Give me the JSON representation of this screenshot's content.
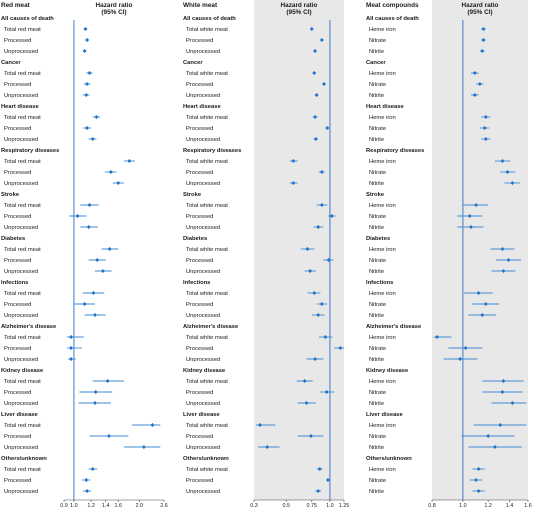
{
  "chart_data": [
    {
      "type": "forest",
      "section_label": "Red meat",
      "axis_title": "Hazard ratio (95% CI)",
      "scale": "log",
      "xlim": [
        0.9,
        2.6
      ],
      "ticks": [
        0.9,
        1.0,
        1.2,
        1.4,
        1.6,
        2.0,
        2.6
      ],
      "tick_labels": [
        "0.9",
        "1.0",
        "1.2",
        "1.4",
        "1.6",
        "2.0",
        "2.6"
      ],
      "reference_line": 1.0,
      "shaded_panel": false,
      "groups": [
        {
          "name": "All causes of death",
          "rows": [
            {
              "label": "Total red meat",
              "hr": 1.13,
              "lo": 1.11,
              "hi": 1.15
            },
            {
              "label": "Processed",
              "hr": 1.15,
              "lo": 1.13,
              "hi": 1.17
            },
            {
              "label": "Unprocessed",
              "hr": 1.12,
              "lo": 1.1,
              "hi": 1.14
            }
          ]
        },
        {
          "name": "Cancer",
          "rows": [
            {
              "label": "Total red meat",
              "hr": 1.18,
              "lo": 1.14,
              "hi": 1.22
            },
            {
              "label": "Processed",
              "hr": 1.15,
              "lo": 1.11,
              "hi": 1.19
            },
            {
              "label": "Unprocessed",
              "hr": 1.14,
              "lo": 1.1,
              "hi": 1.18
            }
          ]
        },
        {
          "name": "Heart disease",
          "rows": [
            {
              "label": "Total red meat",
              "hr": 1.27,
              "lo": 1.22,
              "hi": 1.32
            },
            {
              "label": "Processed",
              "hr": 1.15,
              "lo": 1.1,
              "hi": 1.2
            },
            {
              "label": "Unprocessed",
              "hr": 1.22,
              "lo": 1.17,
              "hi": 1.27
            }
          ]
        },
        {
          "name": "Respiratory diseases",
          "rows": [
            {
              "label": "Total red meat",
              "hr": 1.8,
              "lo": 1.7,
              "hi": 1.91
            },
            {
              "label": "Processed",
              "hr": 1.48,
              "lo": 1.39,
              "hi": 1.57
            },
            {
              "label": "Unprocessed",
              "hr": 1.6,
              "lo": 1.51,
              "hi": 1.7
            }
          ]
        },
        {
          "name": "Stroke",
          "rows": [
            {
              "label": "Total red meat",
              "hr": 1.18,
              "lo": 1.07,
              "hi": 1.3
            },
            {
              "label": "Processed",
              "hr": 1.04,
              "lo": 0.95,
              "hi": 1.14
            },
            {
              "label": "Unprocessed",
              "hr": 1.17,
              "lo": 1.07,
              "hi": 1.29
            }
          ]
        },
        {
          "name": "Diabetes",
          "rows": [
            {
              "label": "Total red meat",
              "hr": 1.46,
              "lo": 1.34,
              "hi": 1.6
            },
            {
              "label": "Processed",
              "hr": 1.28,
              "lo": 1.17,
              "hi": 1.4
            },
            {
              "label": "Unprocessed",
              "hr": 1.36,
              "lo": 1.25,
              "hi": 1.49
            }
          ]
        },
        {
          "name": "Infections",
          "rows": [
            {
              "label": "Total red meat",
              "hr": 1.23,
              "lo": 1.1,
              "hi": 1.38
            },
            {
              "label": "Processed",
              "hr": 1.12,
              "lo": 1.0,
              "hi": 1.25
            },
            {
              "label": "Unprocessed",
              "hr": 1.25,
              "lo": 1.12,
              "hi": 1.4
            }
          ]
        },
        {
          "name": "Alzheimer's disease",
          "rows": [
            {
              "label": "Total red meat",
              "hr": 0.97,
              "lo": 0.93,
              "hi": 1.11
            },
            {
              "label": "Processed",
              "hr": 0.97,
              "lo": 0.93,
              "hi": 1.09
            },
            {
              "label": "Unprocessed",
              "hr": 0.97,
              "lo": 0.94,
              "hi": 1.02
            }
          ]
        },
        {
          "name": "Kidney disease",
          "rows": [
            {
              "label": "Total red meat",
              "hr": 1.43,
              "lo": 1.22,
              "hi": 1.7
            },
            {
              "label": "Processed",
              "hr": 1.26,
              "lo": 1.06,
              "hi": 1.5
            },
            {
              "label": "Unprocessed",
              "hr": 1.25,
              "lo": 1.05,
              "hi": 1.48
            }
          ]
        },
        {
          "name": "Liver disease",
          "rows": [
            {
              "label": "Total red meat",
              "hr": 2.3,
              "lo": 1.85,
              "hi": 2.5
            },
            {
              "label": "Processed",
              "hr": 1.45,
              "lo": 1.18,
              "hi": 1.78
            },
            {
              "label": "Unprocessed",
              "hr": 2.1,
              "lo": 1.7,
              "hi": 2.5
            }
          ]
        },
        {
          "name": "Others/unknown",
          "rows": [
            {
              "label": "Total red meat",
              "hr": 1.22,
              "lo": 1.17,
              "hi": 1.28
            },
            {
              "label": "Processed",
              "hr": 1.14,
              "lo": 1.09,
              "hi": 1.19
            },
            {
              "label": "Unprocessed",
              "hr": 1.15,
              "lo": 1.1,
              "hi": 1.2
            }
          ]
        }
      ]
    },
    {
      "type": "forest",
      "section_label": "White meat",
      "axis_title": "Hazard ratio (95% CI)",
      "scale": "log",
      "xlim": [
        0.3,
        1.25
      ],
      "ticks": [
        0.3,
        0.5,
        0.75,
        1.0,
        1.25
      ],
      "tick_labels": [
        "0.3",
        "0.5",
        "0.75",
        "1.0",
        "1.25"
      ],
      "reference_line": 1.0,
      "shaded_panel": true,
      "groups": [
        {
          "name": "All causes of death",
          "rows": [
            {
              "label": "Total white meat",
              "hr": 0.75,
              "lo": 0.73,
              "hi": 0.77
            },
            {
              "label": "Processed",
              "hr": 0.88,
              "lo": 0.86,
              "hi": 0.9
            },
            {
              "label": "Unprocessed",
              "hr": 0.79,
              "lo": 0.77,
              "hi": 0.81
            }
          ]
        },
        {
          "name": "Cancer",
          "rows": [
            {
              "label": "Total white meat",
              "hr": 0.78,
              "lo": 0.76,
              "hi": 0.8
            },
            {
              "label": "Processed",
              "hr": 0.91,
              "lo": 0.89,
              "hi": 0.93
            },
            {
              "label": "Unprocessed",
              "hr": 0.81,
              "lo": 0.79,
              "hi": 0.83
            }
          ]
        },
        {
          "name": "Heart disease",
          "rows": [
            {
              "label": "Total white meat",
              "hr": 0.79,
              "lo": 0.76,
              "hi": 0.82
            },
            {
              "label": "Processed",
              "hr": 0.96,
              "lo": 0.93,
              "hi": 0.99
            },
            {
              "label": "Unprocessed",
              "hr": 0.8,
              "lo": 0.77,
              "hi": 0.83
            }
          ]
        },
        {
          "name": "Respiratory diseases",
          "rows": [
            {
              "label": "Total white meat",
              "hr": 0.56,
              "lo": 0.53,
              "hi": 0.6
            },
            {
              "label": "Processed",
              "hr": 0.88,
              "lo": 0.84,
              "hi": 0.92
            },
            {
              "label": "Unprocessed",
              "hr": 0.56,
              "lo": 0.53,
              "hi": 0.6
            }
          ]
        },
        {
          "name": "Stroke",
          "rows": [
            {
              "label": "Total white meat",
              "hr": 0.88,
              "lo": 0.81,
              "hi": 0.96
            },
            {
              "label": "Processed",
              "hr": 1.03,
              "lo": 0.97,
              "hi": 1.09
            },
            {
              "label": "Unprocessed",
              "hr": 0.83,
              "lo": 0.77,
              "hi": 0.9
            }
          ]
        },
        {
          "name": "Diabetes",
          "rows": [
            {
              "label": "Total white meat",
              "hr": 0.7,
              "lo": 0.63,
              "hi": 0.78
            },
            {
              "label": "Processed",
              "hr": 0.98,
              "lo": 0.9,
              "hi": 1.06
            },
            {
              "label": "Unprocessed",
              "hr": 0.73,
              "lo": 0.67,
              "hi": 0.8
            }
          ]
        },
        {
          "name": "Infections",
          "rows": [
            {
              "label": "Total white meat",
              "hr": 0.78,
              "lo": 0.7,
              "hi": 0.86
            },
            {
              "label": "Processed",
              "hr": 0.88,
              "lo": 0.81,
              "hi": 0.96
            },
            {
              "label": "Unprocessed",
              "hr": 0.83,
              "lo": 0.75,
              "hi": 0.92
            }
          ]
        },
        {
          "name": "Alzheimer's disease",
          "rows": [
            {
              "label": "Total white meat",
              "hr": 0.93,
              "lo": 0.84,
              "hi": 1.04
            },
            {
              "label": "Processed",
              "hr": 1.18,
              "lo": 1.07,
              "hi": 1.25
            },
            {
              "label": "Unprocessed",
              "hr": 0.79,
              "lo": 0.69,
              "hi": 0.9
            }
          ]
        },
        {
          "name": "Kidney disease",
          "rows": [
            {
              "label": "Total white meat",
              "hr": 0.67,
              "lo": 0.59,
              "hi": 0.76
            },
            {
              "label": "Processed",
              "hr": 0.95,
              "lo": 0.85,
              "hi": 1.07
            },
            {
              "label": "Unprocessed",
              "hr": 0.69,
              "lo": 0.6,
              "hi": 0.8
            }
          ]
        },
        {
          "name": "Liver disease",
          "rows": [
            {
              "label": "Total white meat",
              "hr": 0.33,
              "lo": 0.31,
              "hi": 0.42
            },
            {
              "label": "Processed",
              "hr": 0.74,
              "lo": 0.6,
              "hi": 0.9
            },
            {
              "label": "Unprocessed",
              "hr": 0.37,
              "lo": 0.32,
              "hi": 0.45
            }
          ]
        },
        {
          "name": "Others/unknown",
          "rows": [
            {
              "label": "Total white meat",
              "hr": 0.85,
              "lo": 0.81,
              "hi": 0.89
            },
            {
              "label": "Processed",
              "hr": 0.97,
              "lo": 0.94,
              "hi": 1.0
            },
            {
              "label": "Unprocessed",
              "hr": 0.83,
              "lo": 0.79,
              "hi": 0.87
            }
          ]
        }
      ]
    },
    {
      "type": "forest",
      "section_label": "Meat compounds",
      "axis_title": "Hazard ratio (95% CI)",
      "scale": "log",
      "xlim": [
        0.8,
        1.6
      ],
      "ticks": [
        0.8,
        1.0,
        1.2,
        1.4,
        1.6
      ],
      "tick_labels": [
        "0.8",
        "1.0",
        "1.2",
        "1.4",
        "1.6"
      ],
      "reference_line": 1.0,
      "shaded_panel": true,
      "groups": [
        {
          "name": "All causes of death",
          "rows": [
            {
              "label": "Heme iron",
              "hr": 1.16,
              "lo": 1.14,
              "hi": 1.18
            },
            {
              "label": "Nitrate",
              "hr": 1.16,
              "lo": 1.14,
              "hi": 1.18
            },
            {
              "label": "Nitrite",
              "hr": 1.15,
              "lo": 1.13,
              "hi": 1.17
            }
          ]
        },
        {
          "name": "Cancer",
          "rows": [
            {
              "label": "Heme iron",
              "hr": 1.09,
              "lo": 1.06,
              "hi": 1.12
            },
            {
              "label": "Nitrate",
              "hr": 1.13,
              "lo": 1.1,
              "hi": 1.16
            },
            {
              "label": "Nitrite",
              "hr": 1.09,
              "lo": 1.06,
              "hi": 1.12
            }
          ]
        },
        {
          "name": "Heart disease",
          "rows": [
            {
              "label": "Heme iron",
              "hr": 1.18,
              "lo": 1.14,
              "hi": 1.22
            },
            {
              "label": "Nitrate",
              "hr": 1.17,
              "lo": 1.13,
              "hi": 1.21
            },
            {
              "label": "Nitrite",
              "hr": 1.18,
              "lo": 1.14,
              "hi": 1.22
            }
          ]
        },
        {
          "name": "Respiratory diseases",
          "rows": [
            {
              "label": "Heme iron",
              "hr": 1.33,
              "lo": 1.26,
              "hi": 1.41
            },
            {
              "label": "Nitrate",
              "hr": 1.38,
              "lo": 1.31,
              "hi": 1.46
            },
            {
              "label": "Nitrite",
              "hr": 1.43,
              "lo": 1.35,
              "hi": 1.51
            }
          ]
        },
        {
          "name": "Stroke",
          "rows": [
            {
              "label": "Heme iron",
              "hr": 1.1,
              "lo": 1.0,
              "hi": 1.2
            },
            {
              "label": "Nitrate",
              "hr": 1.05,
              "lo": 0.96,
              "hi": 1.15
            },
            {
              "label": "Nitrite",
              "hr": 1.06,
              "lo": 0.96,
              "hi": 1.16
            }
          ]
        },
        {
          "name": "Diabetes",
          "rows": [
            {
              "label": "Heme iron",
              "hr": 1.33,
              "lo": 1.22,
              "hi": 1.45
            },
            {
              "label": "Nitrate",
              "hr": 1.39,
              "lo": 1.27,
              "hi": 1.52
            },
            {
              "label": "Nitrite",
              "hr": 1.34,
              "lo": 1.23,
              "hi": 1.46
            }
          ]
        },
        {
          "name": "Infections",
          "rows": [
            {
              "label": "Heme iron",
              "hr": 1.12,
              "lo": 1.01,
              "hi": 1.24
            },
            {
              "label": "Nitrate",
              "hr": 1.18,
              "lo": 1.07,
              "hi": 1.3
            },
            {
              "label": "Nitrite",
              "hr": 1.15,
              "lo": 1.04,
              "hi": 1.27
            }
          ]
        },
        {
          "name": "Alzheimer's disease",
          "rows": [
            {
              "label": "Heme iron",
              "hr": 0.83,
              "lo": 0.81,
              "hi": 0.92
            },
            {
              "label": "Nitrate",
              "hr": 1.02,
              "lo": 0.9,
              "hi": 1.15
            },
            {
              "label": "Nitrite",
              "hr": 0.98,
              "lo": 0.87,
              "hi": 1.11
            }
          ]
        },
        {
          "name": "Kidney disease",
          "rows": [
            {
              "label": "Heme iron",
              "hr": 1.34,
              "lo": 1.15,
              "hi": 1.55
            },
            {
              "label": "Nitrate",
              "hr": 1.33,
              "lo": 1.15,
              "hi": 1.54
            },
            {
              "label": "Nitrite",
              "hr": 1.43,
              "lo": 1.23,
              "hi": 1.58
            }
          ]
        },
        {
          "name": "Liver disease",
          "rows": [
            {
              "label": "Heme iron",
              "hr": 1.31,
              "lo": 1.08,
              "hi": 1.58
            },
            {
              "label": "Nitrate",
              "hr": 1.2,
              "lo": 0.99,
              "hi": 1.45
            },
            {
              "label": "Nitrite",
              "hr": 1.26,
              "lo": 1.04,
              "hi": 1.53
            }
          ]
        },
        {
          "name": "Others/unknown",
          "rows": [
            {
              "label": "Heme iron",
              "hr": 1.12,
              "lo": 1.07,
              "hi": 1.17
            },
            {
              "label": "Nitrate",
              "hr": 1.1,
              "lo": 1.05,
              "hi": 1.15
            },
            {
              "label": "Nitrite",
              "hr": 1.12,
              "lo": 1.07,
              "hi": 1.17
            }
          ]
        }
      ]
    }
  ],
  "style": {
    "marker_color": "#1f73c9",
    "ci_color": "#3e8ad6",
    "ref_line_color": "#2b6fc4",
    "panel_shade": "#e8e8e8",
    "axis_color": "#444444",
    "text_color": "#1a1a1a"
  }
}
